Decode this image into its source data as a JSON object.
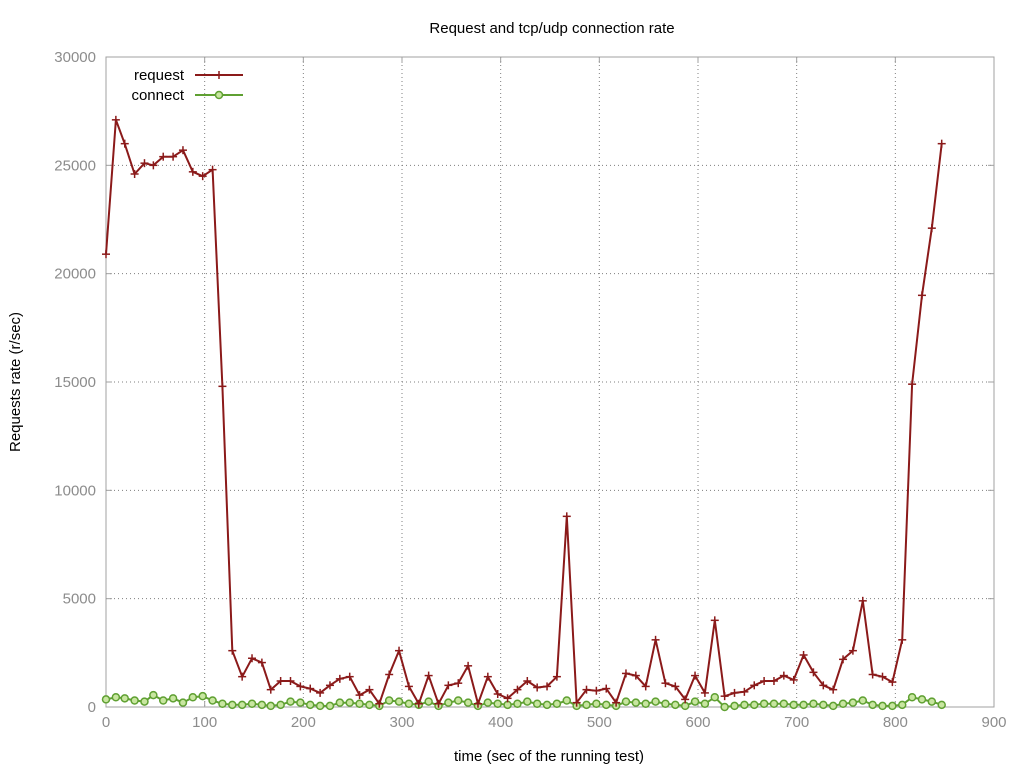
{
  "chart_data": {
    "type": "line",
    "title": "Request and tcp/udp connection rate",
    "xlabel": "time (sec of the running test)",
    "ylabel": "Requests rate (r/sec)",
    "xlim": [
      0,
      900
    ],
    "ylim": [
      0,
      30000
    ],
    "xticks": [
      0,
      100,
      200,
      300,
      400,
      500,
      600,
      700,
      800,
      900
    ],
    "yticks": [
      0,
      5000,
      10000,
      15000,
      20000,
      25000,
      30000
    ],
    "grid": true,
    "legend_position": "top-left",
    "series": [
      {
        "name": "request",
        "color": "#8b1a1a",
        "marker": "plus",
        "x": [
          0,
          10,
          19,
          29,
          39,
          48,
          58,
          68,
          78,
          88,
          98,
          108,
          118,
          128,
          138,
          148,
          158,
          167,
          177,
          187,
          197,
          207,
          217,
          227,
          237,
          247,
          257,
          267,
          277,
          287,
          297,
          307,
          317,
          327,
          337,
          347,
          357,
          367,
          377,
          387,
          397,
          407,
          417,
          427,
          437,
          447,
          457,
          467,
          477,
          487,
          497,
          507,
          517,
          527,
          537,
          547,
          557,
          567,
          577,
          587,
          597,
          607,
          617,
          627,
          637,
          647,
          657,
          667,
          677,
          687,
          697,
          707,
          717,
          727,
          737,
          747,
          757,
          767,
          777,
          787,
          797,
          807,
          817,
          827,
          837,
          847
        ],
        "y": [
          20900,
          27100,
          26000,
          24600,
          25100,
          25000,
          25400,
          25400,
          25700,
          24700,
          24500,
          24800,
          14800,
          2600,
          1400,
          2250,
          2050,
          800,
          1200,
          1200,
          950,
          850,
          650,
          1000,
          1300,
          1400,
          550,
          800,
          150,
          1500,
          2600,
          950,
          150,
          1450,
          150,
          1000,
          1100,
          1900,
          150,
          1400,
          600,
          400,
          800,
          1200,
          900,
          950,
          1400,
          8800,
          200,
          800,
          750,
          850,
          200,
          1550,
          1450,
          950,
          3100,
          1100,
          950,
          350,
          1450,
          650,
          4000,
          500,
          650,
          700,
          1000,
          1200,
          1200,
          1450,
          1250,
          2400,
          1600,
          1000,
          800,
          2200,
          2600,
          4900,
          1500,
          1400,
          1150,
          3100,
          14900,
          19000,
          22100,
          26000
        ]
      },
      {
        "name": "connect",
        "color": "#5fa032",
        "marker": "circle",
        "x": [
          0,
          10,
          19,
          29,
          39,
          48,
          58,
          68,
          78,
          88,
          98,
          108,
          118,
          128,
          138,
          148,
          158,
          167,
          177,
          187,
          197,
          207,
          217,
          227,
          237,
          247,
          257,
          267,
          277,
          287,
          297,
          307,
          317,
          327,
          337,
          347,
          357,
          367,
          377,
          387,
          397,
          407,
          417,
          427,
          437,
          447,
          457,
          467,
          477,
          487,
          497,
          507,
          517,
          527,
          537,
          547,
          557,
          567,
          577,
          587,
          597,
          607,
          617,
          627,
          637,
          647,
          657,
          667,
          677,
          687,
          697,
          707,
          717,
          727,
          737,
          747,
          757,
          767,
          777,
          787,
          797,
          807,
          817,
          827,
          837,
          847
        ],
        "y": [
          350,
          450,
          400,
          300,
          250,
          550,
          300,
          400,
          200,
          450,
          500,
          300,
          150,
          100,
          100,
          150,
          100,
          50,
          100,
          250,
          200,
          100,
          50,
          50,
          200,
          200,
          150,
          100,
          50,
          300,
          250,
          150,
          100,
          250,
          50,
          200,
          300,
          200,
          50,
          200,
          150,
          100,
          150,
          250,
          150,
          100,
          150,
          300,
          50,
          100,
          150,
          100,
          50,
          250,
          200,
          150,
          250,
          150,
          100,
          50,
          250,
          150,
          450,
          0,
          50,
          100,
          100,
          150,
          150,
          150,
          100,
          100,
          150,
          100,
          50,
          150,
          200,
          300,
          100,
          50,
          50,
          100,
          450,
          350,
          250,
          100
        ]
      }
    ]
  }
}
